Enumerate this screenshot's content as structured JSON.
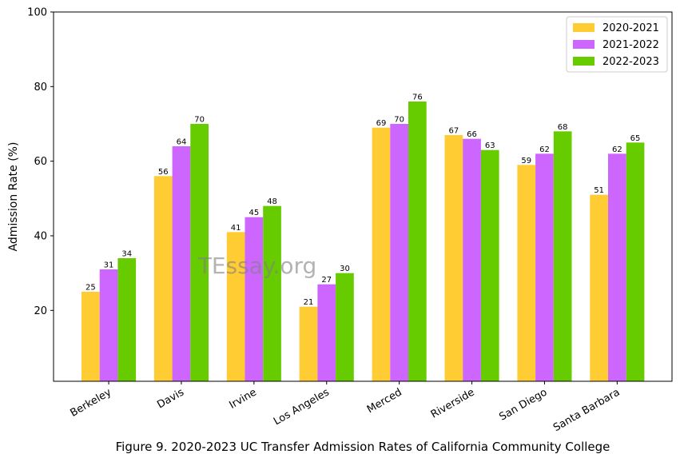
{
  "chart_data": {
    "type": "bar",
    "title": "",
    "xlabel": "",
    "ylabel": "Admission Rate (%)",
    "caption": "Figure 9. 2020-2023 UC Transfer Admission Rates of California Community College",
    "watermark": "TEssay.org",
    "ylim": [
      1,
      100
    ],
    "yticks": [
      20,
      40,
      60,
      80,
      100
    ],
    "legend_position": "top-right",
    "categories": [
      "Berkeley",
      "Davis",
      "Irvine",
      "Los Angeles",
      "Merced",
      "Riverside",
      "San Diego",
      "Santa Barbara"
    ],
    "series": [
      {
        "name": "2020-2021",
        "color": "#ffcc33",
        "values": [
          25,
          56,
          41,
          21,
          69,
          67,
          59,
          51
        ]
      },
      {
        "name": "2021-2022",
        "color": "#cc66ff",
        "values": [
          31,
          64,
          45,
          27,
          70,
          66,
          62,
          62
        ]
      },
      {
        "name": "2022-2023",
        "color": "#66cc00",
        "values": [
          34,
          70,
          48,
          30,
          76,
          63,
          68,
          65
        ]
      }
    ]
  }
}
